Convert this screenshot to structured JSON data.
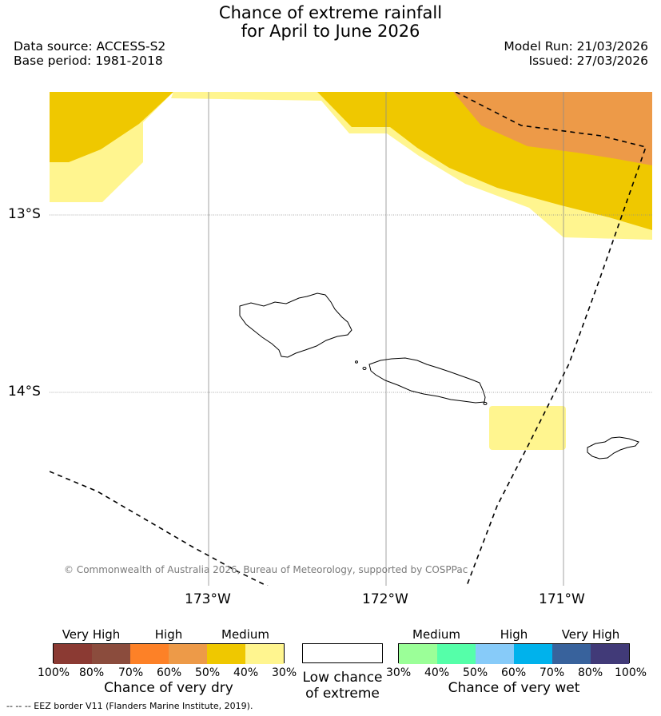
{
  "title": {
    "line1": "Chance of extreme rainfall",
    "line2": "for April to June 2026"
  },
  "meta": {
    "data_source": "Data source: ACCESS-S2",
    "base_period": "Base period: 1981-2018",
    "model_run": "Model Run: 21/03/2026",
    "issued": "Issued: 27/03/2026"
  },
  "map": {
    "lat_labels": [
      "13°S",
      "14°S"
    ],
    "lon_labels": [
      "173°W",
      "172°W",
      "171°W"
    ],
    "copyright": "© Commonwealth of Australia 2026, Bureau of Meteorology, supported by COSPPac"
  },
  "legend": {
    "dry": {
      "categories": [
        "Very High",
        "High",
        "Medium"
      ],
      "ticks": [
        "100%",
        "80%",
        "70%",
        "60%",
        "50%",
        "40%",
        "30%"
      ],
      "title": "Chance of very dry",
      "colors": [
        "#8b3a33",
        "#8b4c3d",
        "#fd8127",
        "#ed9a48",
        "#efc800",
        "#fff58f"
      ]
    },
    "low": {
      "line1": "Low chance",
      "line2": "of extreme"
    },
    "wet": {
      "categories": [
        "Medium",
        "High",
        "Very High"
      ],
      "ticks": [
        "30%",
        "40%",
        "50%",
        "60%",
        "70%",
        "80%",
        "100%"
      ],
      "title": "Chance of very wet",
      "colors": [
        "#9bff98",
        "#55ffa9",
        "#87cbf9",
        "#00b2ec",
        "#38629c",
        "#413a78"
      ]
    }
  },
  "footnote": "--  --  -- EEZ border V11 (Flanders Marine Institute, 2019)."
}
